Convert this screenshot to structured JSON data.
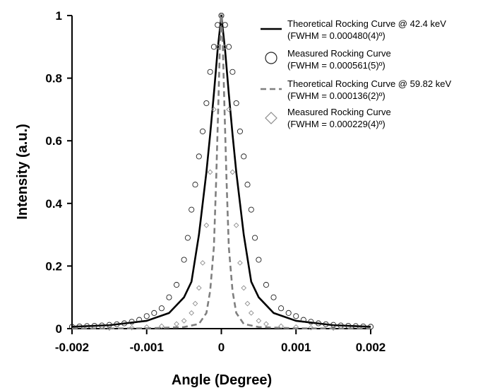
{
  "chart_data": {
    "type": "line",
    "xlabel": "Angle (Degree)",
    "ylabel": "Intensity (a.u.)",
    "xlim": [
      -0.002,
      0.002
    ],
    "ylim": [
      0,
      1
    ],
    "xticks": [
      "-0.002",
      "-0.001",
      "0",
      "0.001",
      "0.002"
    ],
    "yticks": [
      "0",
      "0.2",
      "0.4",
      "0.6",
      "0.8",
      "1"
    ],
    "legend_position": "top-right",
    "series": [
      {
        "name_line1": "Theoretical Rocking Curve @ 42.4 keV",
        "name_line2": "(FWHM = 0.000480(4)º)",
        "style": "solid-line",
        "color": "#000000",
        "x": [
          -0.002,
          -0.0015,
          -0.001,
          -0.0007,
          -0.0005,
          -0.0004,
          -0.0003,
          -0.0002,
          -0.00015,
          -0.0001,
          -5e-05,
          0,
          5e-05,
          0.0001,
          0.00015,
          0.0002,
          0.0003,
          0.0004,
          0.0005,
          0.0007,
          0.001,
          0.0015,
          0.002
        ],
        "y": [
          0.006,
          0.011,
          0.025,
          0.05,
          0.1,
          0.15,
          0.3,
          0.5,
          0.62,
          0.75,
          0.89,
          1.0,
          0.89,
          0.75,
          0.62,
          0.5,
          0.3,
          0.15,
          0.1,
          0.05,
          0.025,
          0.011,
          0.006
        ]
      },
      {
        "name_line1": "Measured Rocking Curve",
        "name_line2": "(FWHM = 0.000561(5)º)",
        "style": "open-circle",
        "color": "#222222",
        "x": [
          -0.002,
          -0.0019,
          -0.0018,
          -0.0017,
          -0.0016,
          -0.0015,
          -0.0014,
          -0.0013,
          -0.0012,
          -0.0011,
          -0.001,
          -0.0009,
          -0.0008,
          -0.0007,
          -0.0006,
          -0.0005,
          -0.00045,
          -0.0004,
          -0.00035,
          -0.0003,
          -0.00025,
          -0.0002,
          -0.00015,
          -0.0001,
          -5e-05,
          0,
          5e-05,
          0.0001,
          0.00015,
          0.0002,
          0.00025,
          0.0003,
          0.00035,
          0.0004,
          0.00045,
          0.0005,
          0.0006,
          0.0007,
          0.0008,
          0.0009,
          0.001,
          0.0011,
          0.0012,
          0.0013,
          0.0014,
          0.0015,
          0.0016,
          0.0017,
          0.0018,
          0.0019,
          0.002
        ],
        "y": [
          0.006,
          0.007,
          0.008,
          0.009,
          0.01,
          0.012,
          0.014,
          0.017,
          0.022,
          0.028,
          0.04,
          0.05,
          0.065,
          0.1,
          0.14,
          0.22,
          0.29,
          0.38,
          0.46,
          0.55,
          0.63,
          0.72,
          0.82,
          0.9,
          0.97,
          1.0,
          0.97,
          0.9,
          0.82,
          0.72,
          0.63,
          0.55,
          0.46,
          0.38,
          0.29,
          0.22,
          0.14,
          0.1,
          0.065,
          0.05,
          0.04,
          0.028,
          0.022,
          0.017,
          0.014,
          0.012,
          0.01,
          0.009,
          0.008,
          0.007,
          0.006
        ]
      },
      {
        "name_line1": "Theoretical Rocking Curve @ 59.82 keV",
        "name_line2": "(FWHM = 0.000136(2)º)",
        "style": "dashed-line",
        "color": "#7f7f7f",
        "x": [
          -0.002,
          -0.001,
          -0.0005,
          -0.0003,
          -0.0002,
          -0.00015,
          -0.0001,
          -7e-05,
          -4e-05,
          -2e-05,
          0,
          2e-05,
          4e-05,
          7e-05,
          0.0001,
          0.00015,
          0.0002,
          0.0003,
          0.0005,
          0.001,
          0.002
        ],
        "y": [
          0.0,
          0.001,
          0.005,
          0.015,
          0.05,
          0.12,
          0.26,
          0.47,
          0.72,
          0.9,
          1.0,
          0.9,
          0.72,
          0.47,
          0.26,
          0.12,
          0.05,
          0.015,
          0.005,
          0.001,
          0.0
        ]
      },
      {
        "name_line1": "Measured Rocking Curve",
        "name_line2": "(FWHM = 0.000229(4)º)",
        "style": "open-diamond",
        "color": "#8c8c8c",
        "x": [
          -0.0015,
          -0.0012,
          -0.001,
          -0.0008,
          -0.0006,
          -0.0005,
          -0.0004,
          -0.00035,
          -0.0003,
          -0.00025,
          -0.0002,
          -0.00015,
          -0.0001,
          -5e-05,
          0,
          5e-05,
          0.0001,
          0.00015,
          0.0002,
          0.00025,
          0.0003,
          0.00035,
          0.0004,
          0.0005,
          0.0006,
          0.0008,
          0.001,
          0.0012,
          0.0015
        ],
        "y": [
          0.002,
          0.003,
          0.005,
          0.008,
          0.015,
          0.025,
          0.05,
          0.08,
          0.13,
          0.21,
          0.33,
          0.5,
          0.7,
          0.9,
          1.0,
          0.9,
          0.7,
          0.5,
          0.33,
          0.21,
          0.13,
          0.08,
          0.05,
          0.025,
          0.015,
          0.008,
          0.005,
          0.003,
          0.002
        ]
      }
    ]
  }
}
